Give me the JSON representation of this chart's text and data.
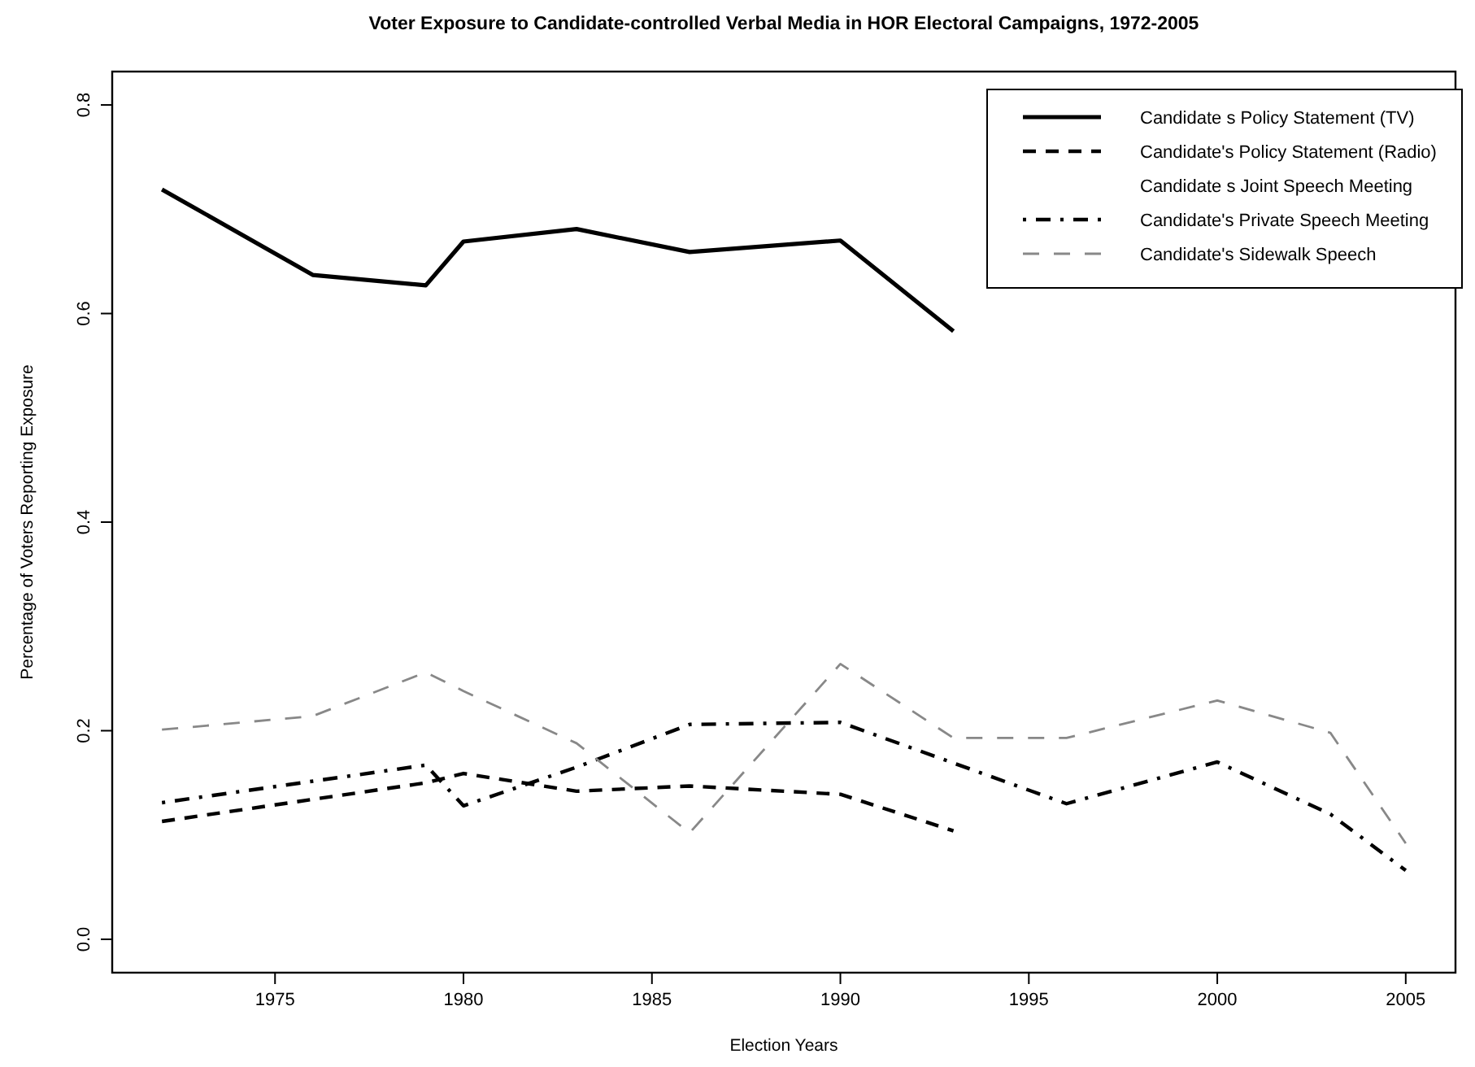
{
  "chart_data": {
    "type": "line",
    "title": "Voter Exposure to Candidate-controlled Verbal Media in HOR Electoral Campaigns, 1972-2005",
    "xlabel": "Election Years",
    "ylabel": "Percentage of Voters Reporting Exposure",
    "xlim": [
      1970.68,
      2006.32
    ],
    "xticks": [
      1975,
      1980,
      1985,
      1990,
      1995,
      2000,
      2005
    ],
    "ylim": [
      -0.032,
      0.832
    ],
    "yticks": [
      {
        "value": 0,
        "label": "0.0"
      },
      {
        "value": 0.2,
        "label": "0.2"
      },
      {
        "value": 0.4,
        "label": "0.4"
      },
      {
        "value": 0.6,
        "label": "0.6"
      },
      {
        "value": 0.8,
        "label": "0.8"
      }
    ],
    "grid": false,
    "legend": "top right",
    "marker": "none",
    "series": [
      {
        "name": "Candidate s Policy Statement (TV)",
        "color": "#000000",
        "line_style": "solid",
        "x": [
          1972,
          1976,
          1979,
          1980,
          1983,
          1986,
          1990,
          1993
        ],
        "values": [
          0.719,
          0.637,
          0.627,
          0.669,
          0.681,
          0.659,
          0.67,
          0.583
        ]
      },
      {
        "name": "Candidate's Policy Statement (Radio)",
        "color": "#000000",
        "line_style": "dashed",
        "x": [
          1972,
          1979,
          1980,
          1983,
          1986,
          1990,
          1993
        ],
        "values": [
          0.113,
          0.15,
          0.159,
          0.142,
          0.147,
          0.139,
          0.104
        ]
      },
      {
        "name": "Candidate s Joint Speech Meeting"
      },
      {
        "name": "Candidate's Private Speech Meeting",
        "color": "#000000",
        "line_style": "dashdot",
        "x": [
          1972,
          1979,
          1980,
          1983,
          1986,
          1990,
          1993,
          1996,
          2000,
          2003,
          2005
        ],
        "values": [
          0.131,
          0.167,
          0.128,
          0.165,
          0.206,
          0.208,
          0.169,
          0.13,
          0.17,
          0.12,
          0.066
        ]
      },
      {
        "name": "Candidate's Sidewalk Speech",
        "color": "#888888",
        "line_style": "longdash",
        "x": [
          1972,
          1976,
          1979,
          1980,
          1983,
          1986,
          1990,
          1993,
          1996,
          2000,
          2003,
          2005
        ],
        "values": [
          0.201,
          0.214,
          0.256,
          0.238,
          0.188,
          0.102,
          0.264,
          0.193,
          0.193,
          0.229,
          0.198,
          0.092
        ]
      }
    ]
  }
}
